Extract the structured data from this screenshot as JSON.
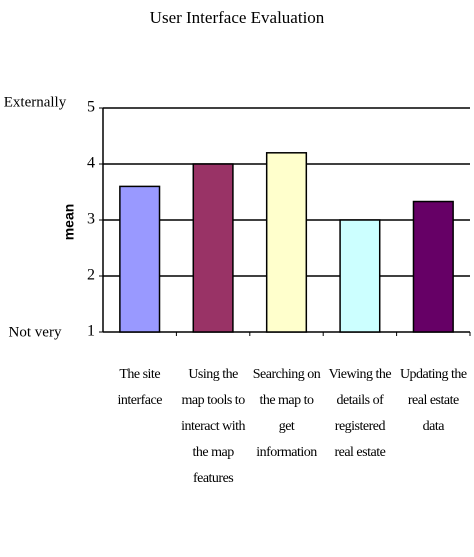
{
  "chart_data": {
    "type": "bar",
    "title": "User Interface Evaluation",
    "y_label": "mean",
    "annotations": [
      "Externally",
      "Not very"
    ],
    "categories": [
      "The site interface",
      "Using the map tools to interact with the map features",
      "Searching on the map to get information",
      "Viewing the details of registered real estate",
      "Updating the real estate data"
    ],
    "values": [
      3.6,
      4.0,
      4.2,
      3.0,
      3.33
    ],
    "colors": [
      "#9999ff",
      "#993366",
      "#ffffcc",
      "#ccffff",
      "#660066"
    ],
    "ylim": [
      1,
      5
    ],
    "yticks": [
      1,
      2,
      3,
      4,
      5
    ],
    "grid": true
  }
}
